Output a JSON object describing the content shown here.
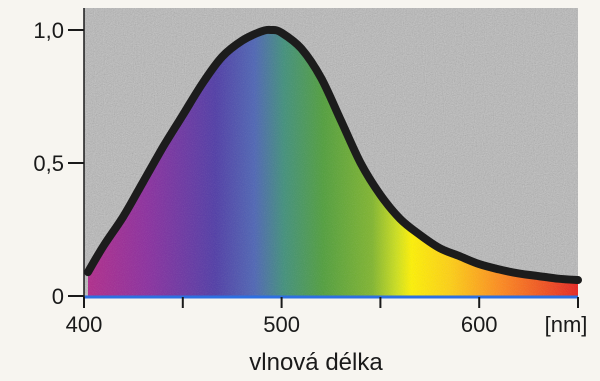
{
  "chart_data": {
    "type": "area",
    "title": "",
    "xlabel": "vlnová délka",
    "x_unit_label": "[nm]",
    "ylabel": "",
    "xlim": [
      400,
      650
    ],
    "ylim": [
      0,
      1.0
    ],
    "x_ticks": [
      400,
      450,
      500,
      550,
      600,
      650
    ],
    "x_tick_labels": [
      "400",
      "",
      "500",
      "",
      "600",
      ""
    ],
    "y_ticks": [
      0,
      0.5,
      1.0
    ],
    "y_tick_labels": [
      "0",
      "0,5",
      "1,0"
    ],
    "grid": false,
    "legend": "none",
    "fill": "visible-spectrum-gradient",
    "background_texture": "gray-noise",
    "colors": {
      "curve": "#1c1c1c",
      "baseline": "#2d6fe0",
      "background": "#b8b8b8"
    },
    "series": [
      {
        "x": [
          402,
          410,
          420,
          430,
          440,
          450,
          460,
          470,
          480,
          490,
          495,
          500,
          510,
          520,
          530,
          540,
          550,
          560,
          570,
          580,
          590,
          600,
          610,
          620,
          630,
          640,
          650
        ],
        "y": [
          0.09,
          0.19,
          0.3,
          0.43,
          0.56,
          0.68,
          0.8,
          0.9,
          0.96,
          0.995,
          1.0,
          0.99,
          0.93,
          0.82,
          0.66,
          0.5,
          0.38,
          0.29,
          0.23,
          0.18,
          0.15,
          0.12,
          0.1,
          0.085,
          0.075,
          0.065,
          0.06
        ]
      }
    ]
  }
}
